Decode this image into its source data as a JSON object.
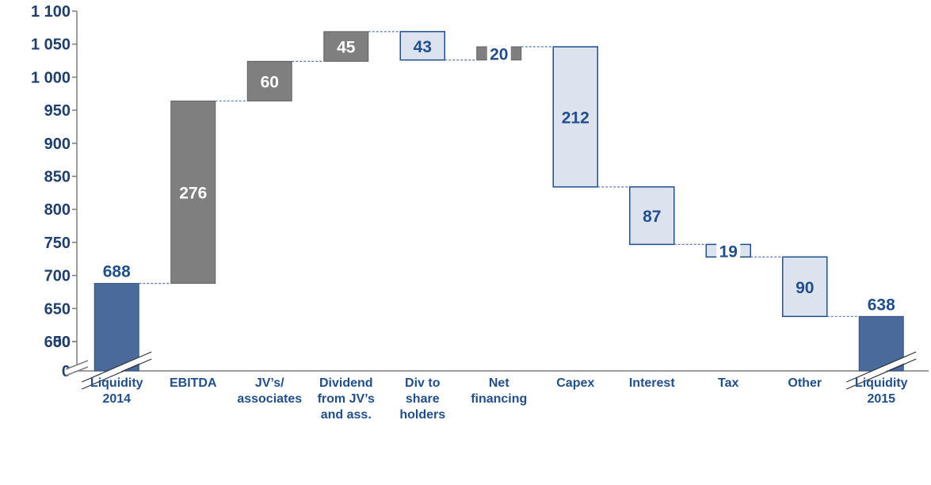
{
  "chart_data": {
    "type": "waterfall",
    "title": "",
    "xlabel": "",
    "ylabel": "",
    "ylim": [
      0,
      1100
    ],
    "axis_break": {
      "from": 50,
      "to": 600
    },
    "y_ticks": [
      "0",
      "50",
      "600",
      "650",
      "700",
      "750",
      "800",
      "850",
      "900",
      "950",
      "1 000",
      "1 050",
      "1 100"
    ],
    "y_tick_values": [
      0,
      50,
      600,
      650,
      700,
      750,
      800,
      850,
      900,
      950,
      1000,
      1050,
      1100
    ],
    "bars": [
      {
        "category": [
          "Liquidity",
          "2014"
        ],
        "kind": "total",
        "start": 0,
        "end": 688,
        "label": "688"
      },
      {
        "category": [
          "EBITDA"
        ],
        "kind": "increase",
        "start": 688,
        "end": 964,
        "label": "276"
      },
      {
        "category": [
          "JV’s/",
          "associates"
        ],
        "kind": "increase",
        "start": 964,
        "end": 1024,
        "label": "60"
      },
      {
        "category": [
          "Dividend",
          "from JV’s",
          "and ass."
        ],
        "kind": "increase",
        "start": 1024,
        "end": 1069,
        "label": "45"
      },
      {
        "category": [
          "Div to",
          "share",
          "holders"
        ],
        "kind": "decrease",
        "start": 1069,
        "end": 1026,
        "label": "43"
      },
      {
        "category": [
          "Net",
          "financing"
        ],
        "kind": "increase",
        "start": 1026,
        "end": 1046,
        "label": "20"
      },
      {
        "category": [
          "Capex"
        ],
        "kind": "decrease",
        "start": 1046,
        "end": 834,
        "label": "212"
      },
      {
        "category": [
          "Interest"
        ],
        "kind": "decrease",
        "start": 834,
        "end": 747,
        "label": "87"
      },
      {
        "category": [
          "Tax"
        ],
        "kind": "decrease",
        "start": 747,
        "end": 728,
        "label": "19"
      },
      {
        "category": [
          "Other"
        ],
        "kind": "decrease",
        "start": 728,
        "end": 638,
        "label": "90"
      },
      {
        "category": [
          "Liquidity",
          "2015"
        ],
        "kind": "total",
        "start": 0,
        "end": 638,
        "label": "638"
      }
    ],
    "colors": {
      "total": "#4a6a9c",
      "increase": "#7f7f7f",
      "decrease": "#dde3ee",
      "decrease_stroke": "#1f4f8f",
      "label_dark": "#1f4f8f",
      "label_light": "#ffffff",
      "connector": "#5a7ab0",
      "axis": "#7f7f7f"
    },
    "grid": false,
    "legend": "none"
  }
}
